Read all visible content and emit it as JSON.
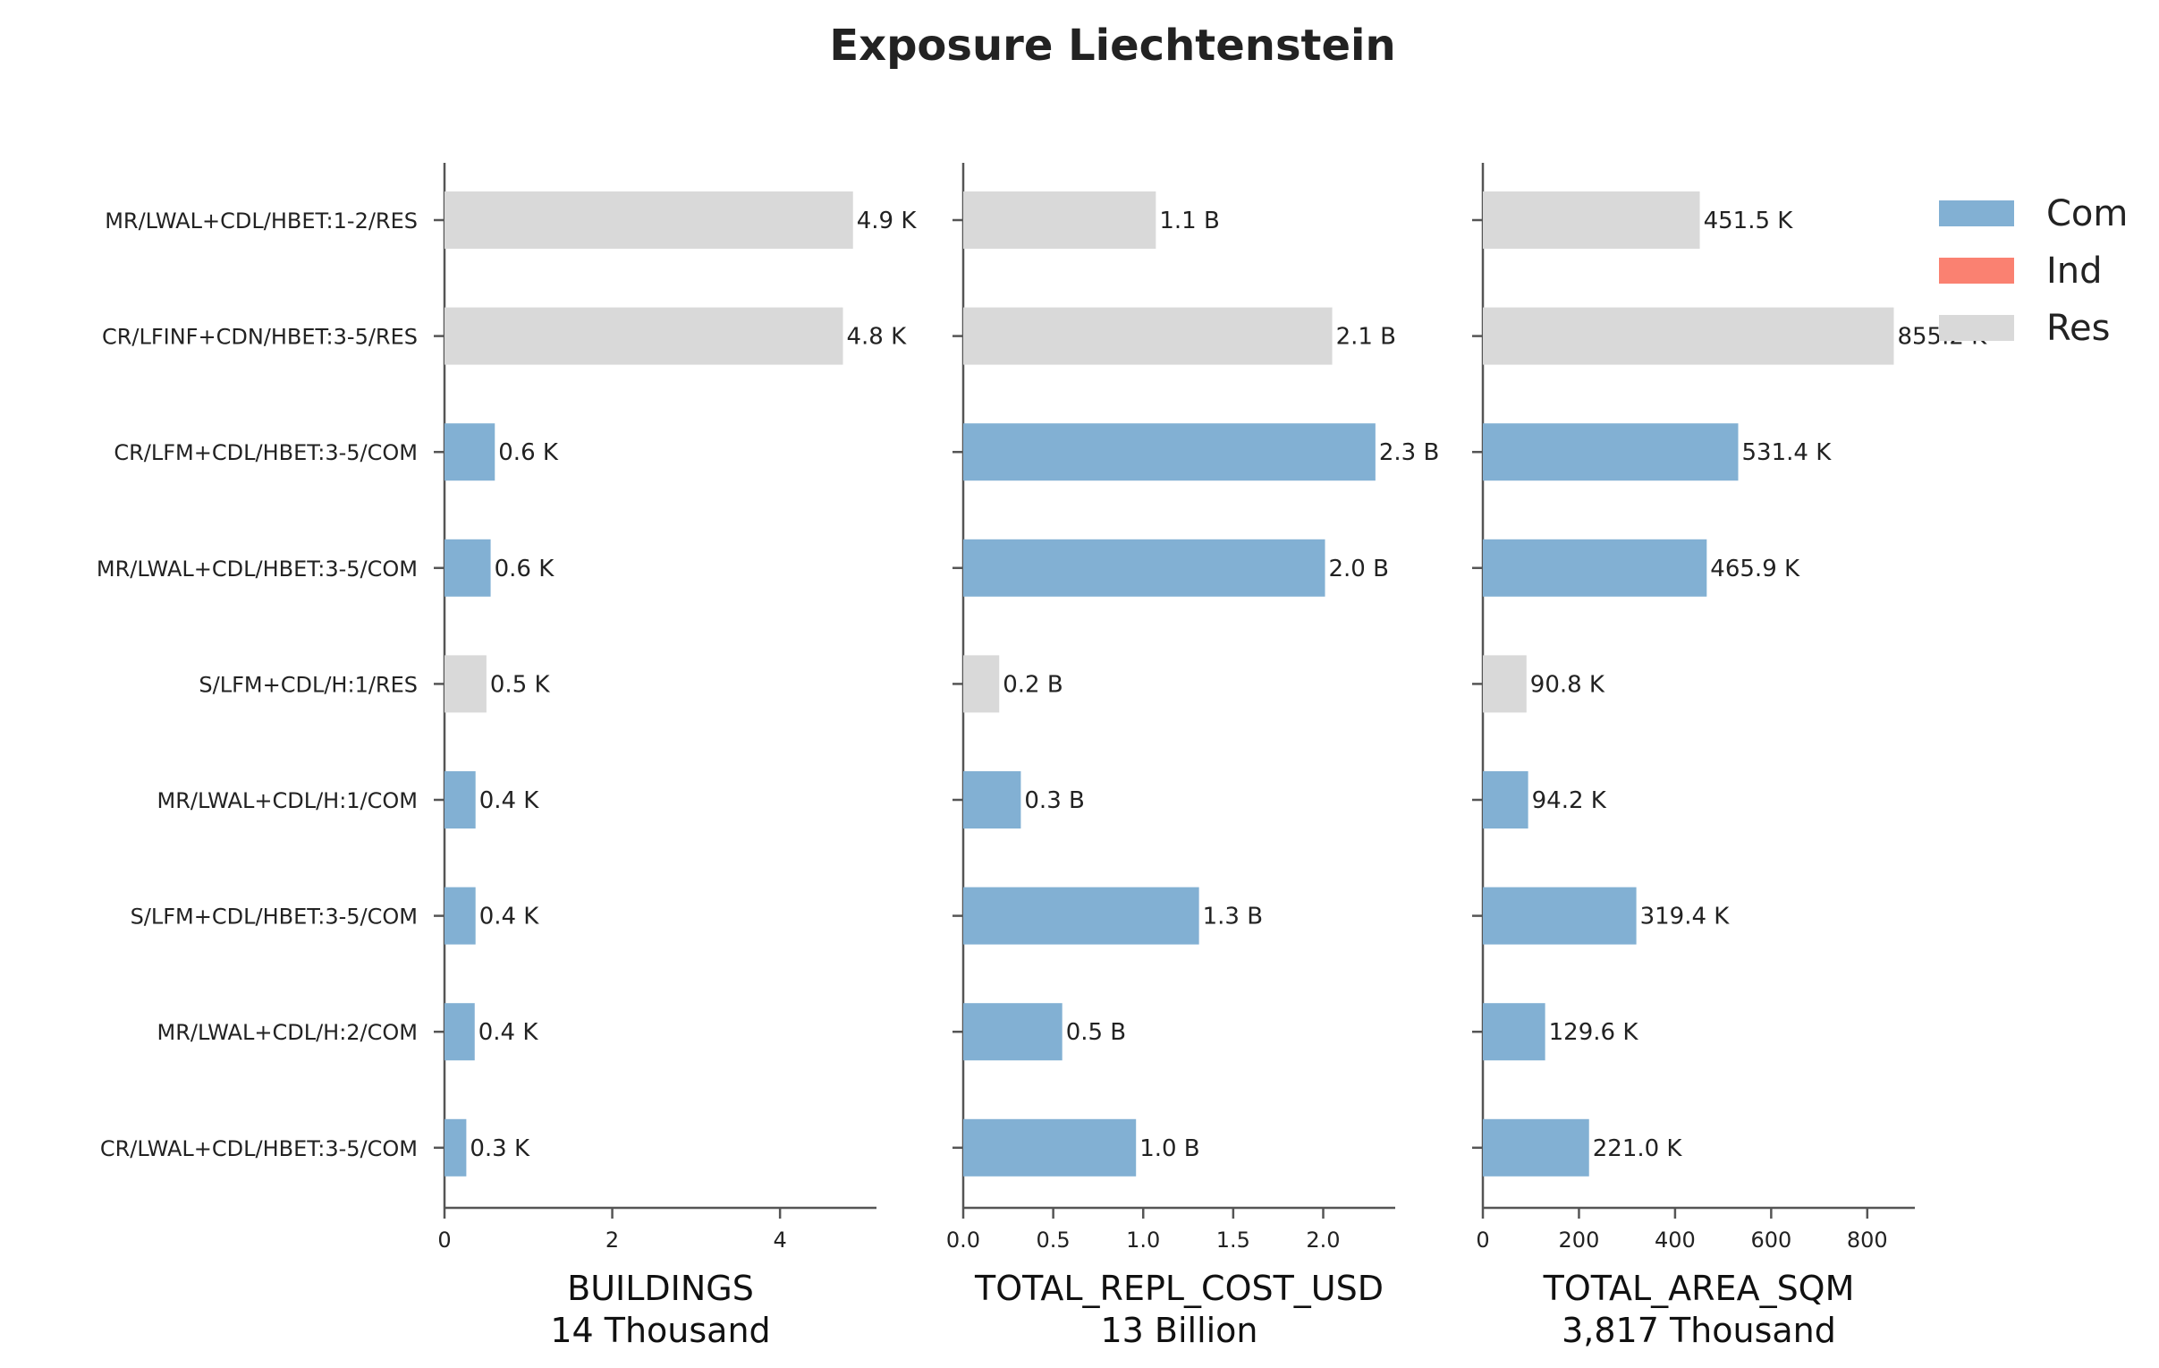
{
  "chart_data": {
    "type": "bar",
    "orientation": "horizontal",
    "title": "Exposure Liechtenstein",
    "categories": [
      "MR/LWAL+CDL/HBET:1-2/RES",
      "CR/LFINF+CDN/HBET:3-5/RES",
      "CR/LFM+CDL/HBET:3-5/COM",
      "MR/LWAL+CDL/HBET:3-5/COM",
      "S/LFM+CDL/H:1/RES",
      "MR/LWAL+CDL/H:1/COM",
      "S/LFM+CDL/HBET:3-5/COM",
      "MR/LWAL+CDL/H:2/COM",
      "CR/LWAL+CDL/HBET:3-5/COM"
    ],
    "occupancy": [
      "Res",
      "Res",
      "Com",
      "Com",
      "Res",
      "Com",
      "Com",
      "Com",
      "Com"
    ],
    "legend": {
      "position": "top-right",
      "entries": [
        {
          "name": "Com",
          "color": "#82b0d3"
        },
        {
          "name": "Ind",
          "color": "#fa8171"
        },
        {
          "name": "Res",
          "color": "#d9d9d9"
        }
      ]
    },
    "panels": [
      {
        "xlabel": "BUILDINGS",
        "total_label": "14 Thousand",
        "xlim": [
          0,
          5.15
        ],
        "xticks": [
          0,
          2,
          4
        ],
        "xtick_labels": [
          "0",
          "2",
          "4"
        ],
        "values": [
          4.87,
          4.75,
          0.6,
          0.55,
          0.5,
          0.37,
          0.37,
          0.36,
          0.26
        ],
        "value_labels": [
          "4.9 K",
          "4.8 K",
          "0.6 K",
          "0.6 K",
          "0.5 K",
          "0.4 K",
          "0.4 K",
          "0.4 K",
          "0.3 K"
        ]
      },
      {
        "xlabel": "TOTAL_REPL_COST_USD",
        "total_label": "13 Billion",
        "xlim": [
          0,
          2.4
        ],
        "xticks": [
          0,
          0.5,
          1.0,
          1.5,
          2.0
        ],
        "xtick_labels": [
          "0.0",
          "0.5",
          "1.0",
          "1.5",
          "2.0"
        ],
        "values": [
          1.07,
          2.05,
          2.29,
          2.01,
          0.2,
          0.32,
          1.31,
          0.55,
          0.96
        ],
        "value_labels": [
          "1.1 B",
          "2.1 B",
          "2.3 B",
          "2.0 B",
          "0.2 B",
          "0.3 B",
          "1.3 B",
          "0.5 B",
          "1.0 B"
        ]
      },
      {
        "xlabel": "TOTAL_AREA_SQM",
        "total_label": "3,817 Thousand",
        "xlim": [
          0,
          899
        ],
        "xticks": [
          0,
          200,
          400,
          600,
          800
        ],
        "xtick_labels": [
          "0",
          "200",
          "400",
          "600",
          "800"
        ],
        "values": [
          451.5,
          855.2,
          531.4,
          465.9,
          90.8,
          94.2,
          319.4,
          129.6,
          221.0
        ],
        "value_labels": [
          "451.5 K",
          "855.2 K",
          "531.4 K",
          "465.9 K",
          "90.8 K",
          "94.2 K",
          "319.4 K",
          "129.6 K",
          "221.0 K"
        ]
      }
    ]
  }
}
